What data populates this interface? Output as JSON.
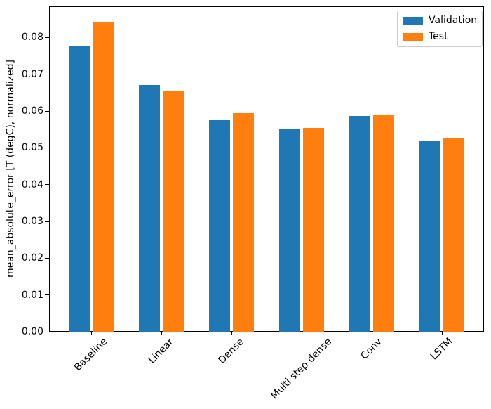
{
  "chart_data": {
    "type": "bar",
    "title": "",
    "xlabel": "",
    "ylabel": "mean_absolute_error [T (degC), normalized]",
    "categories": [
      "Baseline",
      "Linear",
      "Dense",
      "Multi step dense",
      "Conv",
      "LSTM"
    ],
    "series": [
      {
        "name": "Validation",
        "color": "#1f77b4",
        "values": [
          0.0777,
          0.0671,
          0.0575,
          0.055,
          0.0586,
          0.0518
        ]
      },
      {
        "name": "Test",
        "color": "#ff7f0e",
        "values": [
          0.0843,
          0.0656,
          0.0595,
          0.0554,
          0.0589,
          0.0528
        ]
      }
    ],
    "ylim": [
      0,
      0.0885
    ],
    "yticks": [
      0.0,
      0.01,
      0.02,
      0.03,
      0.04,
      0.05,
      0.06,
      0.07,
      0.08
    ],
    "ytick_decimals": 2,
    "xtick_rotation": 45,
    "grid": false,
    "legend_position": "upper right",
    "axis_color": "#000000",
    "background": "#ffffff"
  }
}
